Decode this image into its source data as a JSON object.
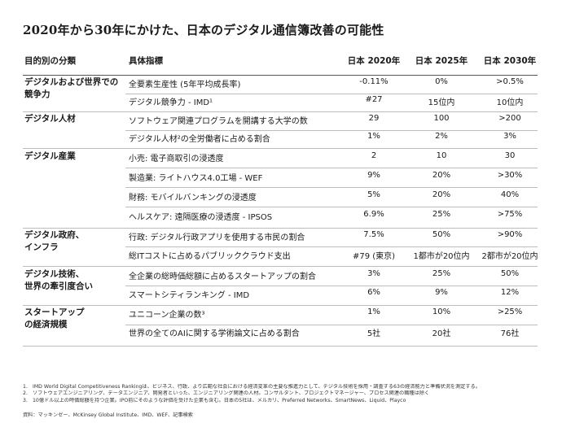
{
  "title": "2020年から30年にかけた、日本のデジタル通信簿改善の可能性",
  "headers": {
    "category": "目的別の分類",
    "indicator": "具体指標",
    "y2020": "日本 2020年",
    "y2025": "日本 2025年",
    "y2030": "日本 2030年"
  },
  "categories": [
    {
      "label": "デジタルおよび世界での\n競争力"
    },
    {
      "label": "デジタル人材"
    },
    {
      "label": "デジタル産業"
    },
    {
      "label": "デジタル政府、\nインフラ"
    },
    {
      "label": "デジタル技術、\n世界の牽引度合い"
    },
    {
      "label": "スタートアップ\nの経済規模"
    }
  ],
  "rows": [
    {
      "indicator": "全要素生産性 (5年平均成長率)",
      "v2020": "-0.11%",
      "v2025": "0%",
      "v2030": ">0.5%"
    },
    {
      "indicator": "デジタル競争力 - IMD¹",
      "v2020": "#27",
      "v2025": "15位内",
      "v2030": "10位内"
    },
    {
      "indicator": "ソフトウェア関連プログラムを開講する大学の数",
      "v2020": "29",
      "v2025": "100",
      "v2030": ">200"
    },
    {
      "indicator": "デジタル人材²の全労働者に占める割合",
      "v2020": "1%",
      "v2025": "2%",
      "v2030": "3%"
    },
    {
      "indicator": "小売: 電子商取引の浸透度",
      "v2020": "2",
      "v2025": "10",
      "v2030": "30"
    },
    {
      "indicator": "製造業: ライトハウス4.0工場 - WEF",
      "v2020": "9%",
      "v2025": "20%",
      "v2030": ">30%"
    },
    {
      "indicator": "財務: モバイルバンキングの浸透度",
      "v2020": "5%",
      "v2025": "20%",
      "v2030": "40%"
    },
    {
      "indicator": "ヘルスケア: 遠隔医療の浸透度 - IPSOS",
      "v2020": "6.9%",
      "v2025": "25%",
      "v2030": ">75%"
    },
    {
      "indicator": "行政: デジタル行政アプリを使用する市民の割合",
      "v2020": "7.5%",
      "v2025": "50%",
      "v2030": ">90%"
    },
    {
      "indicator": "総ITコストに占めるパブリッククラウド支出",
      "v2020": "#79 (東京)",
      "v2025": "1都市が20位内",
      "v2030": "2都市が20位内"
    },
    {
      "indicator": "全企業の総時価総額に占めるスタートアップの割合",
      "v2020": "3%",
      "v2025": "25%",
      "v2030": "50%"
    },
    {
      "indicator": "スマートシティランキング - IMD",
      "v2020": "6%",
      "v2025": "9%",
      "v2030": "12%"
    },
    {
      "indicator": "ユニコーン企業の数³",
      "v2020": "1%",
      "v2025": "10%",
      "v2030": ">25%"
    },
    {
      "indicator": "世界の全てのAIに関する学術論文に占める割合",
      "v2020": "5社",
      "v2025": "20社",
      "v2030": "76社"
    }
  ],
  "notes": [
    {
      "num": "1.",
      "text": "IMD World Digital Competitiveness Rankingは、ビジネス、行政、より広範な社会における経済変革の主要な推進力として、デジタル技術を採用・調査する63の経済能力と準備状況を測定する。"
    },
    {
      "num": "2.",
      "text": "ソフトウェアエンジニアリング、データエンジニア、開発者といった、エンジニアリング関連の人材。コンサルタント、プロジェクトマネージャー、プロセス関連の職種は除く"
    },
    {
      "num": "3.",
      "text": "10億ドル以上の時価総額を持つ企業。IPO前にそのような評価を受けた企業も含む。日本の5社は、メルカリ、Preferred Networks、SmartNews、Liquid、Playco"
    }
  ],
  "source": "資料：マッキンゼー、McKinsey Global Institute、IMD、WEF、記事検索"
}
